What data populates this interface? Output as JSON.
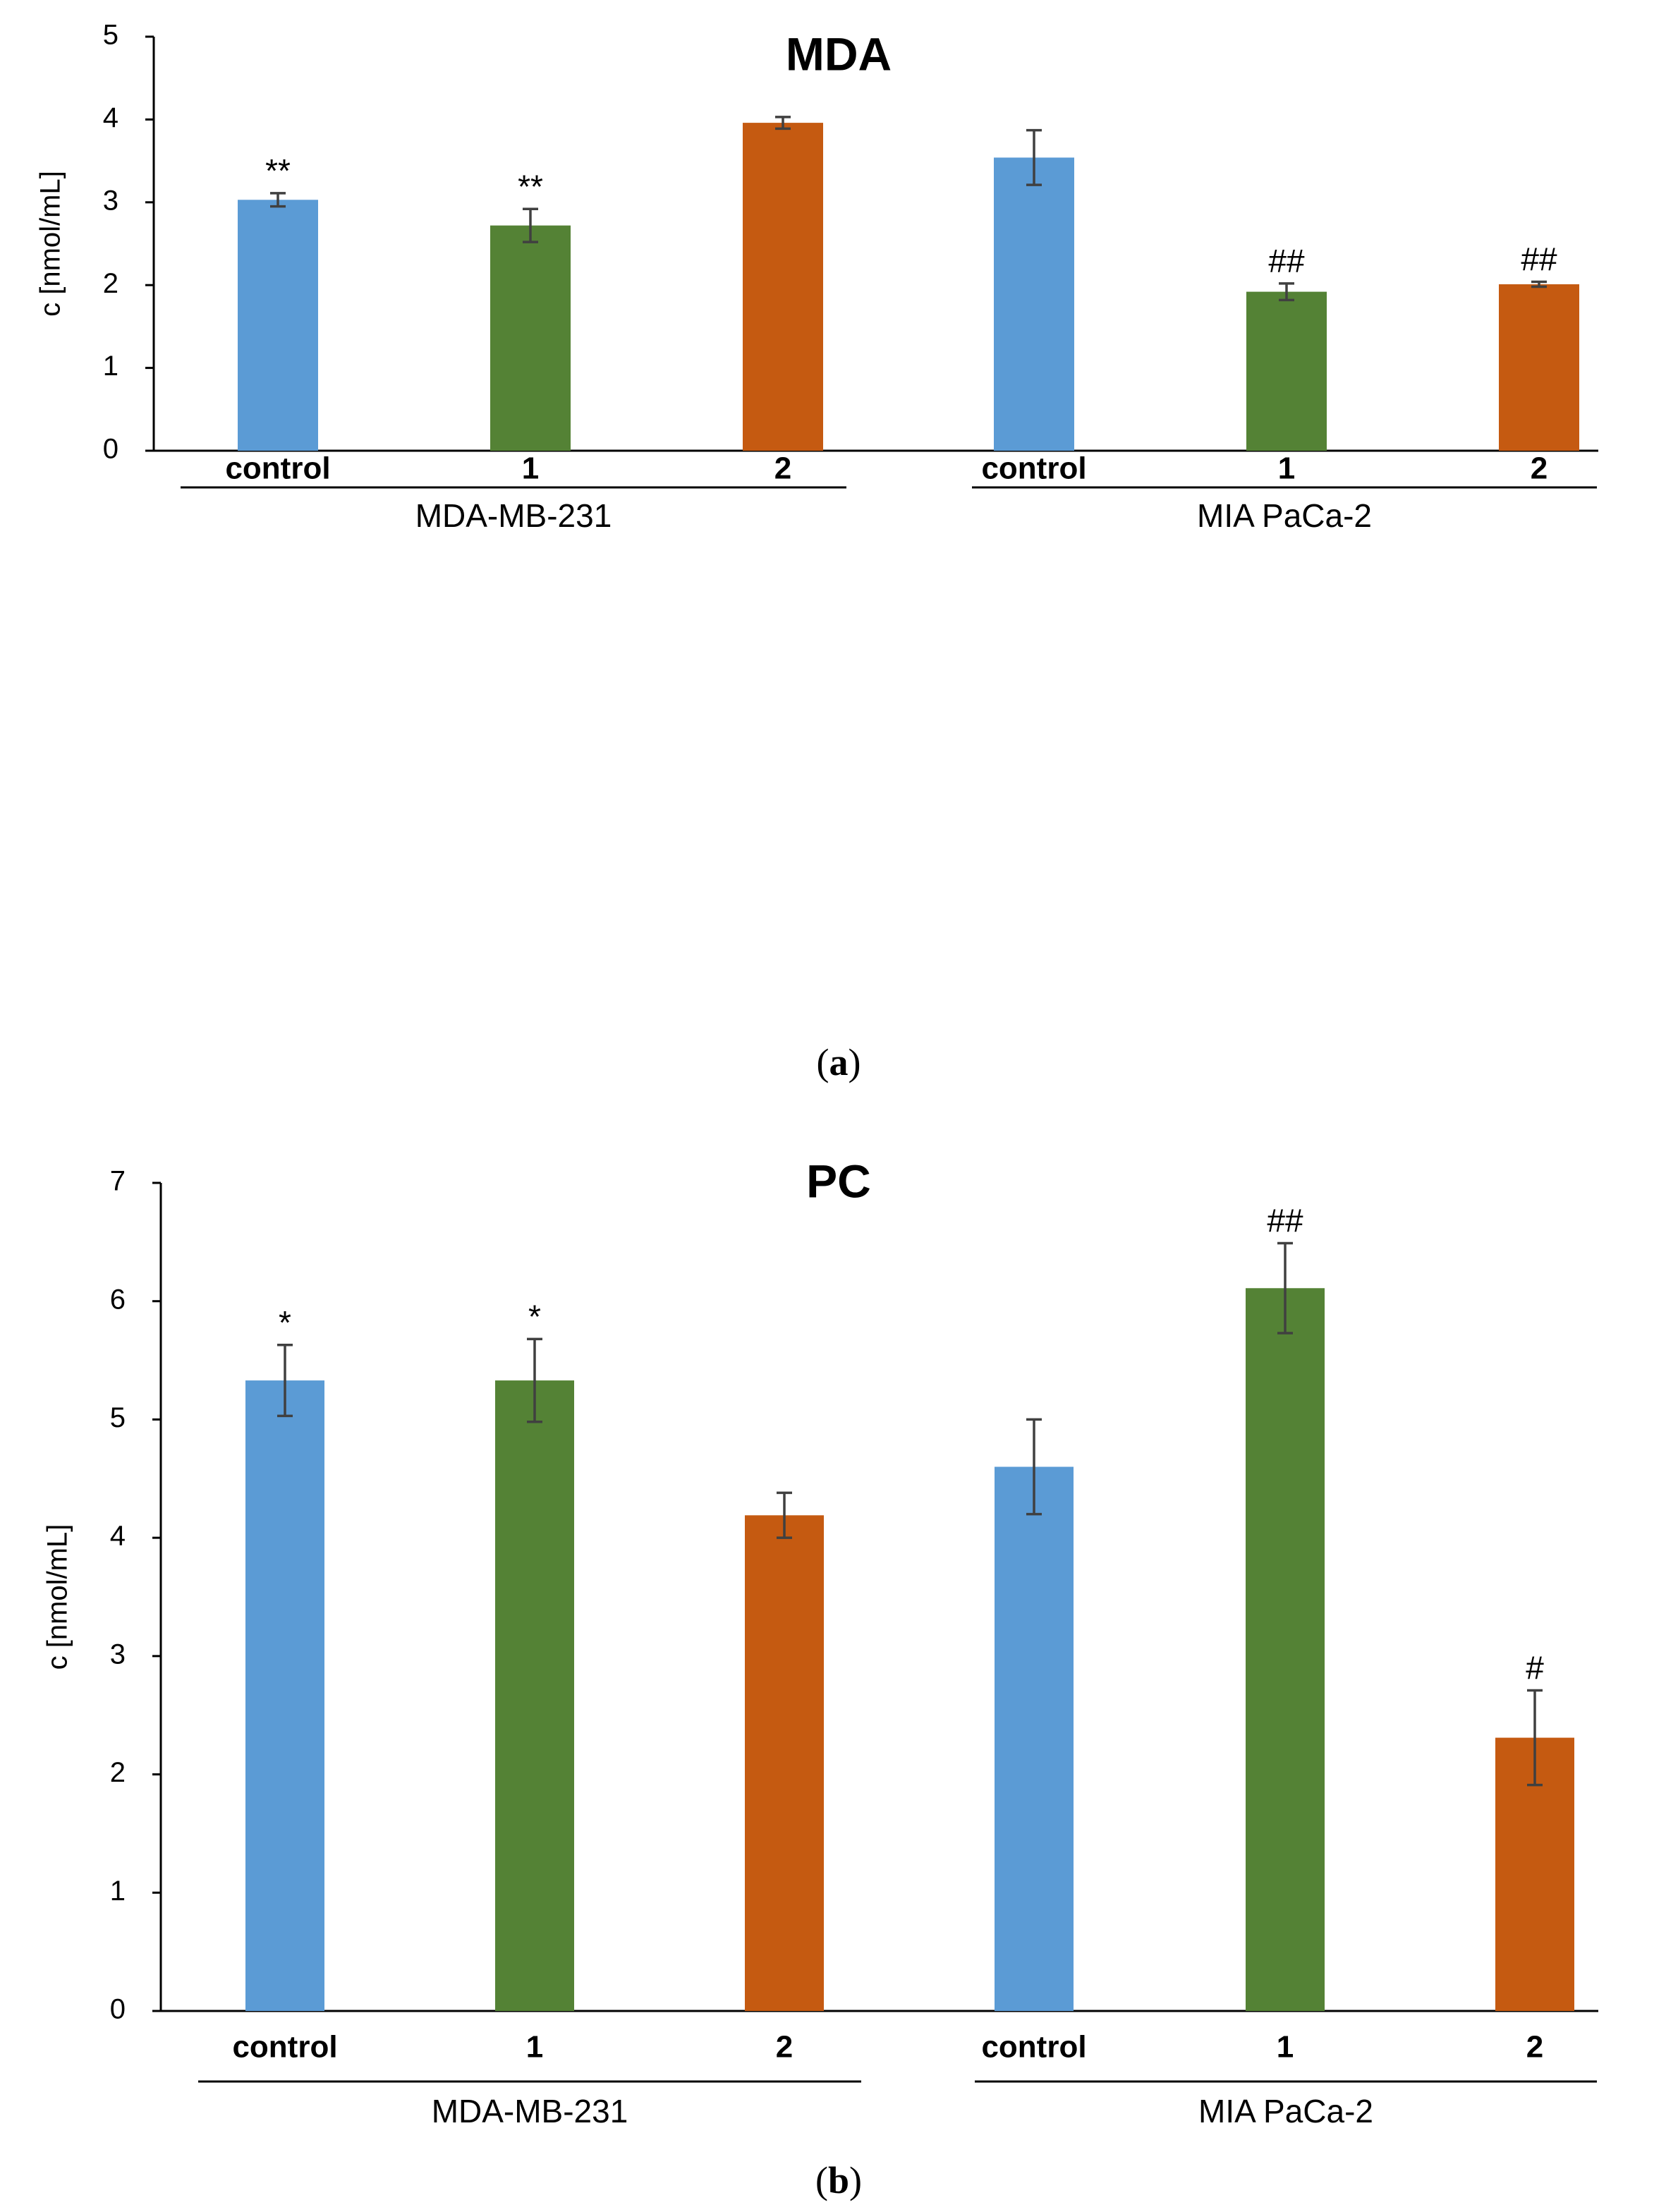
{
  "colors": {
    "control": "#5b9bd5",
    "1": "#548235",
    "2": "#c55a11"
  },
  "chart_data": [
    {
      "type": "bar",
      "title": "MDA",
      "ylabel": "c [nmol/mL]",
      "ylim": [
        0,
        5
      ],
      "yticks": [
        0,
        1,
        2,
        3,
        4,
        5
      ],
      "categories": [
        "control",
        "1",
        "2",
        "control",
        "1",
        "2"
      ],
      "groups": [
        {
          "label": "MDA-MB-231",
          "members": [
            0,
            1,
            2
          ]
        },
        {
          "label": "MIA PaCa-2",
          "members": [
            3,
            4,
            5
          ]
        }
      ],
      "values": [
        3.03,
        2.72,
        3.96,
        3.54,
        1.92,
        2.01
      ],
      "errors": [
        0.08,
        0.2,
        0.07,
        0.33,
        0.1,
        0.03
      ],
      "annotations": [
        "**",
        "**",
        "",
        "",
        "##",
        "##"
      ],
      "panel_label": {
        "open": "(",
        "letter": "a",
        "close": ")"
      }
    },
    {
      "type": "bar",
      "title": "PC",
      "ylabel": "c [nmol/mL]",
      "ylim": [
        0,
        7
      ],
      "yticks": [
        0,
        1,
        2,
        3,
        4,
        5,
        6,
        7
      ],
      "categories": [
        "control",
        "1",
        "2",
        "control",
        "1",
        "2"
      ],
      "groups": [
        {
          "label": "MDA-MB-231",
          "members": [
            0,
            1,
            2
          ]
        },
        {
          "label": "MIA PaCa-2",
          "members": [
            3,
            4,
            5
          ]
        }
      ],
      "values": [
        5.33,
        5.33,
        4.19,
        4.6,
        6.11,
        2.31
      ],
      "errors": [
        0.3,
        0.35,
        0.19,
        0.4,
        0.38,
        0.4
      ],
      "annotations": [
        "*",
        "*",
        "",
        "",
        "##",
        "#"
      ],
      "panel_label": {
        "open": "(",
        "letter": "b",
        "close": ")"
      }
    }
  ]
}
